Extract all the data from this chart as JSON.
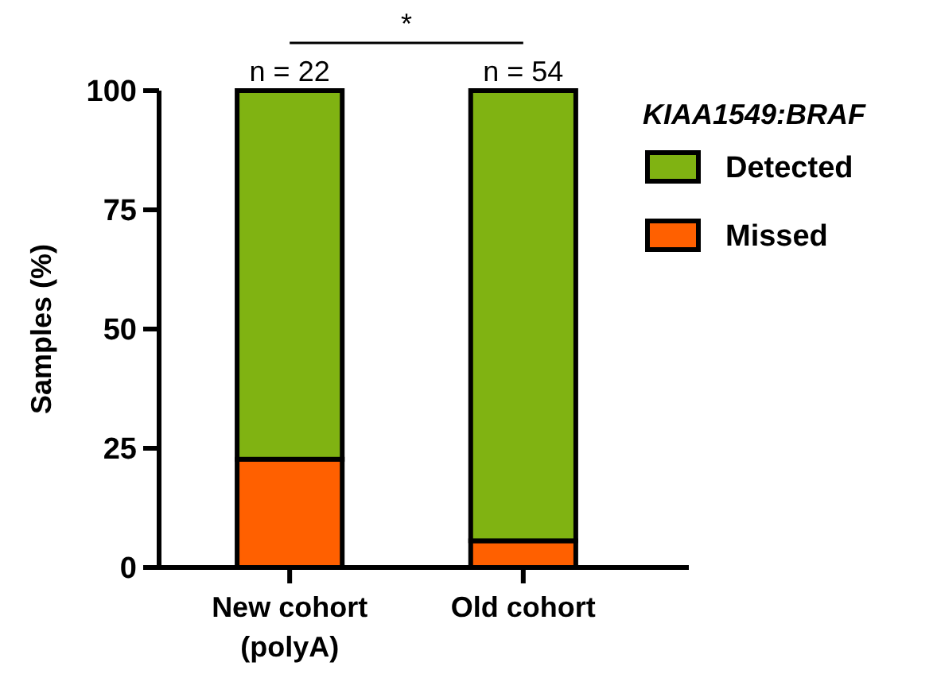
{
  "chart_data": {
    "type": "bar",
    "stacked": true,
    "ylabel": "Samples (%)",
    "legend_title": "KIAA1549:BRAF",
    "legend": "top right",
    "categories": [
      "New cohort (polyA)",
      "Old cohort"
    ],
    "series": [
      {
        "name": "Missed",
        "color": "#ff6000",
        "values": [
          22.7,
          5.6
        ]
      },
      {
        "name": "Detected",
        "color": "#80b312",
        "values": [
          77.3,
          94.4
        ]
      }
    ],
    "ylim": [
      0,
      100
    ],
    "yticks": [
      0,
      25,
      50,
      75,
      100
    ],
    "annotations": [
      {
        "text": "n = 22",
        "x": "New cohort (polyA)",
        "y": 100
      },
      {
        "text": "n = 54",
        "x": "Old cohort",
        "y": 100
      },
      "*"
    ]
  }
}
